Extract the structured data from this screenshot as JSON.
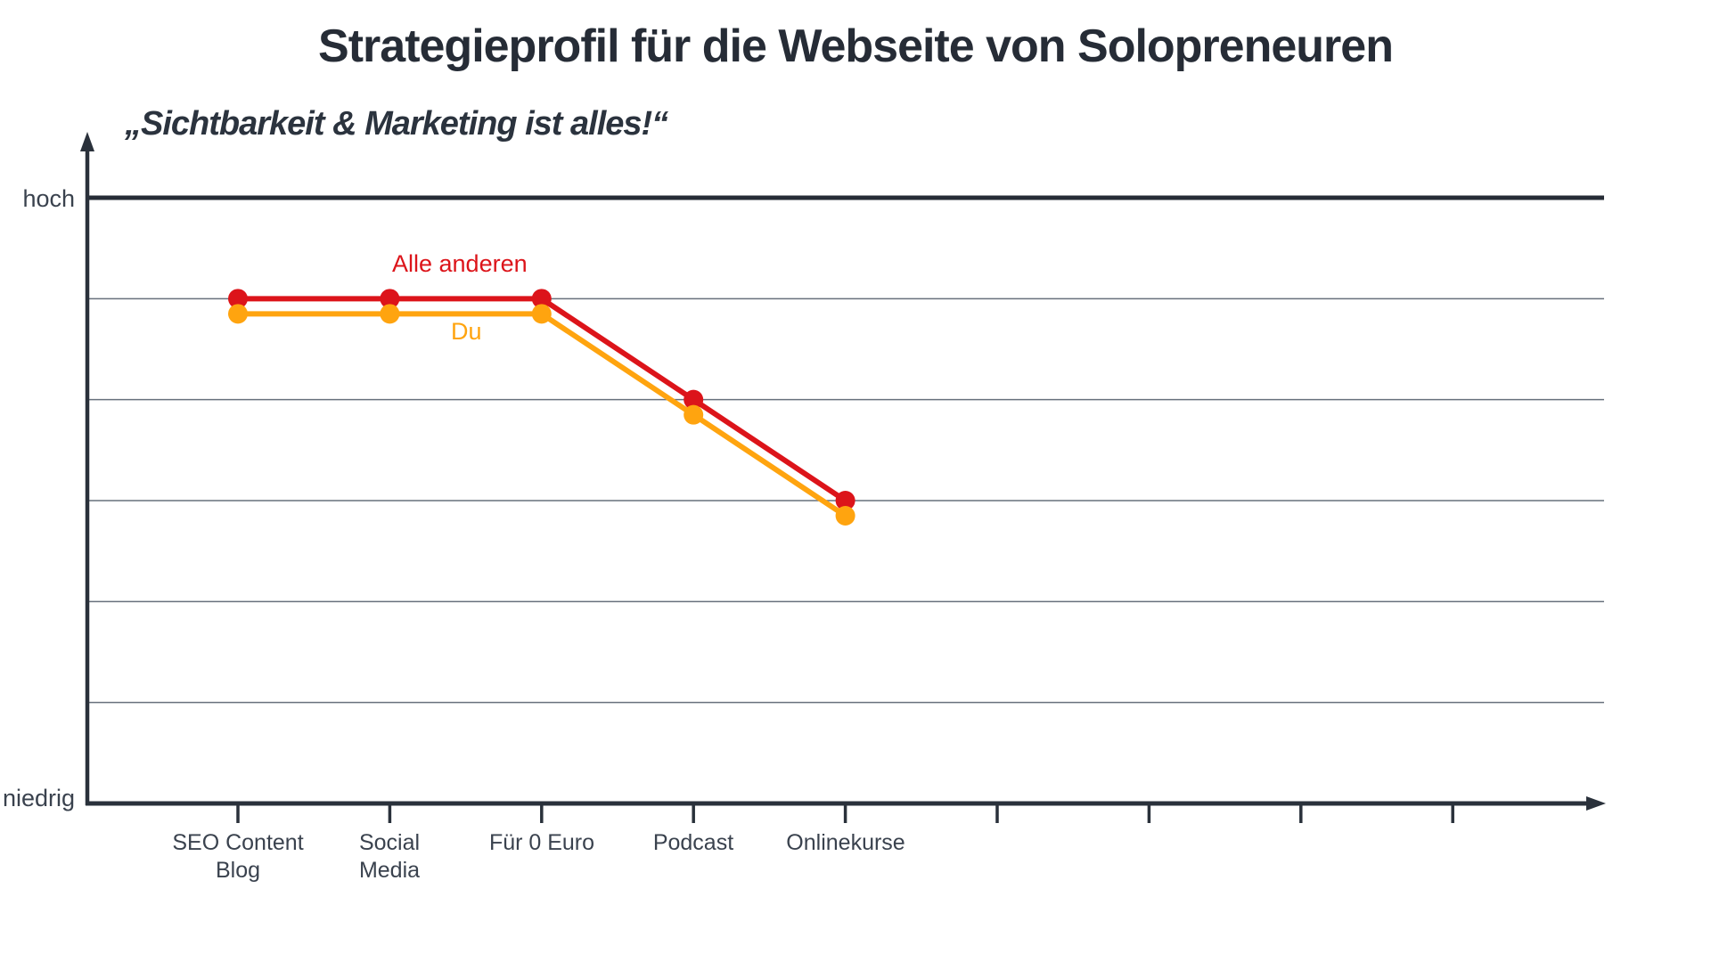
{
  "title": "Strategieprofil für die Webseite von Solopreneuren",
  "subtitle": "„Sichtbarkeit & Marketing ist alles!“",
  "colors": {
    "ink": "#262C36",
    "axis": "#2A313B",
    "grid": "#67707C",
    "label": "#3A424E",
    "red": "#DC141A",
    "orange": "#FFA40F"
  },
  "chart_data": {
    "type": "line",
    "title": "Strategieprofil für die Webseite von Solopreneuren",
    "subtitle": "„Sichtbarkeit & Marketing ist alles!“",
    "categories": [
      "SEO Content Blog",
      "Social Media",
      "Für 0 Euro",
      "Podcast",
      "Onlinekurse"
    ],
    "category_labels": [
      "SEO Content\nBlog",
      "Social\nMedia",
      "Für 0 Euro",
      "Podcast",
      "Onlinekurse"
    ],
    "series": [
      {
        "name": "Alle anderen",
        "color": "#DC141A",
        "values": [
          5,
          5,
          5,
          4,
          3
        ]
      },
      {
        "name": "Du",
        "color": "#FFA40F",
        "values": [
          4.85,
          4.85,
          4.85,
          3.85,
          2.85
        ]
      }
    ],
    "y_scale": {
      "min": 0,
      "max": 6,
      "top_label": "hoch",
      "bottom_label": "niedrig",
      "gridlines": true
    },
    "x_ticks_total": 9,
    "legend_position": "inline-labels"
  }
}
